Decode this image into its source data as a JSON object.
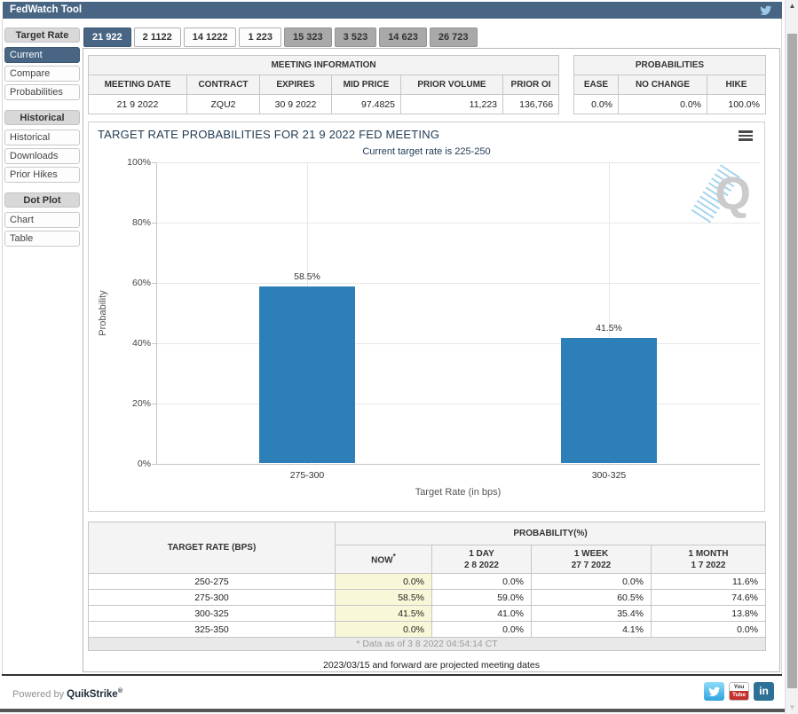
{
  "titlebar": {
    "title": "FedWatch Tool"
  },
  "sidebar": {
    "groups": [
      {
        "header": "Target Rate",
        "items": [
          {
            "label": "Current"
          },
          {
            "label": "Compare"
          },
          {
            "label": "Probabilities"
          }
        ]
      },
      {
        "header": "Historical",
        "items": [
          {
            "label": "Historical"
          },
          {
            "label": "Downloads"
          },
          {
            "label": "Prior Hikes"
          }
        ]
      },
      {
        "header": "Dot Plot",
        "items": [
          {
            "label": "Chart"
          },
          {
            "label": "Table"
          }
        ]
      }
    ]
  },
  "tabs": [
    {
      "label": "21 922",
      "state": "selected"
    },
    {
      "label": "2 1122",
      "state": "normal"
    },
    {
      "label": "14 1222",
      "state": "normal"
    },
    {
      "label": "1 223",
      "state": "normal"
    },
    {
      "label": "15 323",
      "state": "projected"
    },
    {
      "label": "3 523",
      "state": "projected"
    },
    {
      "label": "14 623",
      "state": "projected"
    },
    {
      "label": "26 723",
      "state": "projected"
    }
  ],
  "meeting_info": {
    "title": "MEETING INFORMATION",
    "columns": [
      "MEETING DATE",
      "CONTRACT",
      "EXPIRES",
      "MID PRICE",
      "PRIOR VOLUME",
      "PRIOR OI"
    ],
    "values": [
      "21 9 2022",
      "ZQU2",
      "30 9 2022",
      "97.4825",
      "11,223",
      "136,766"
    ]
  },
  "probabilities_summary": {
    "title": "PROBABILITIES",
    "columns": [
      "EASE",
      "NO CHANGE",
      "HIKE"
    ],
    "values": [
      "0.0%",
      "0.0%",
      "100.0%"
    ]
  },
  "chart_data": {
    "type": "bar",
    "title": "TARGET RATE PROBABILITIES FOR 21 9 2022 FED MEETING",
    "subtitle": "Current target rate is 225-250",
    "categories": [
      "275-300",
      "300-325"
    ],
    "values": [
      58.5,
      41.5
    ],
    "value_labels": [
      "58.5%",
      "41.5%"
    ],
    "xlabel": "Target Rate (in bps)",
    "ylabel": "Probability",
    "ylim": [
      0,
      100
    ],
    "yticks": [
      "100%",
      "80%",
      "60%",
      "40%",
      "20%",
      "0%"
    ],
    "grid": true,
    "legend": "none",
    "bar_color": "#2d7fb8",
    "watermark": "Q"
  },
  "prob_table": {
    "col1_header": "TARGET RATE (BPS)",
    "group_header": "PROBABILITY(%)",
    "columns": [
      {
        "line1": "NOW",
        "sup": "*",
        "line2": ""
      },
      {
        "line1": "1 DAY",
        "line2": "2 8 2022"
      },
      {
        "line1": "1 WEEK",
        "line2": "27 7 2022"
      },
      {
        "line1": "1 MONTH",
        "line2": "1 7 2022"
      }
    ],
    "rows": [
      {
        "rate": "250-275",
        "values": [
          "0.0%",
          "0.0%",
          "0.0%",
          "11.6%"
        ]
      },
      {
        "rate": "275-300",
        "values": [
          "58.5%",
          "59.0%",
          "60.5%",
          "74.6%"
        ]
      },
      {
        "rate": "300-325",
        "values": [
          "41.5%",
          "41.0%",
          "35.4%",
          "13.8%"
        ]
      },
      {
        "rate": "325-350",
        "values": [
          "0.0%",
          "0.0%",
          "4.1%",
          "0.0%"
        ]
      }
    ],
    "footnote": "* Data as of 3 8 2022 04:54:14 CT"
  },
  "notes": {
    "projected": "2023/03/15 and forward are projected meeting dates"
  },
  "footer": {
    "powered_by": "Powered by",
    "brand": "QuikStrike",
    "trademark": "®",
    "youtube_top": "You",
    "youtube_bottom": "Tube",
    "linkedin": "in"
  },
  "colors": {
    "accent": "#486684",
    "bar": "#2d7fb8",
    "now_column": "#f8f8d8",
    "title_text": "#1f3a52"
  }
}
